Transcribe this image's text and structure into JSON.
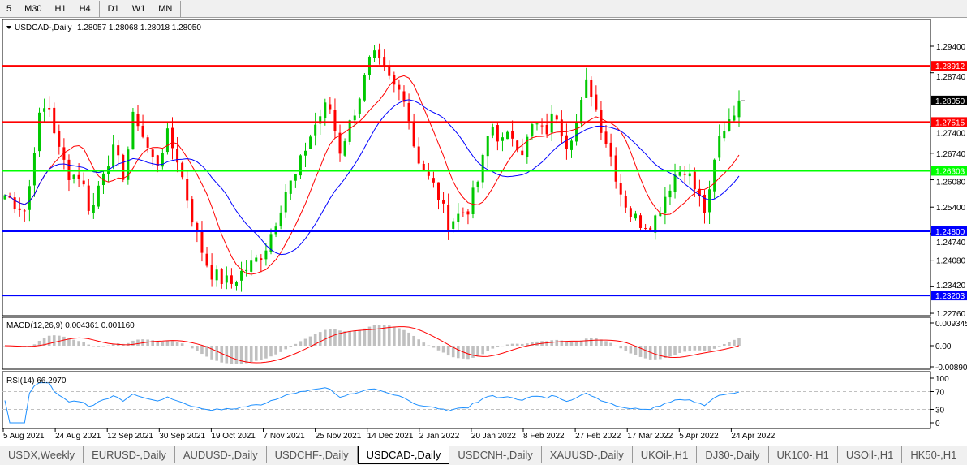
{
  "timeframes": [
    "5",
    "M30",
    "H1",
    "H4",
    "D1",
    "W1",
    "MN"
  ],
  "active_timeframe": "D1",
  "chart": {
    "title": "USDCAD-,Daily",
    "ohlc": "1.28057 1.28068 1.28018 1.28050",
    "price_ticks": [
      "1.29400",
      "1.28740",
      "1.27400",
      "1.26740",
      "1.26080",
      "1.25400",
      "1.24740",
      "1.24080",
      "1.23420",
      "1.22760"
    ],
    "current_price": "1.28050",
    "levels": [
      {
        "value": "1.28912",
        "color": "#ff0000"
      },
      {
        "value": "1.27515",
        "color": "#ff0000"
      },
      {
        "value": "1.26303",
        "color": "#00ff00"
      },
      {
        "value": "1.24800",
        "color": "#0000ff"
      },
      {
        "value": "1.23203",
        "color": "#0000ff"
      }
    ],
    "colors": {
      "bull": "#00c800",
      "bear": "#ff0000",
      "ma_fast": "#ff0000",
      "ma_slow": "#0000ff",
      "macd_hist": "#c0c0c0",
      "macd_signal": "#ff0000",
      "rsi": "#1e90ff"
    }
  },
  "macd": {
    "label": "MACD(12,26,9) 0.004361 0.001160",
    "ticks": [
      "0.009345",
      "0.00",
      "-0.008902"
    ]
  },
  "rsi": {
    "label": "RSI(14) 66.2970",
    "ticks": [
      "100",
      "70",
      "30",
      "0"
    ]
  },
  "date_labels": [
    "5 Aug 2021",
    "24 Aug 2021",
    "12 Sep 2021",
    "30 Sep 2021",
    "19 Oct 2021",
    "7 Nov 2021",
    "25 Nov 2021",
    "14 Dec 2021",
    "2 Jan 2022",
    "20 Jan 2022",
    "8 Feb 2022",
    "27 Feb 2022",
    "17 Mar 2022",
    "5 Apr 2022",
    "24 Apr 2022"
  ],
  "chart_data": {
    "type": "candlestick",
    "symbol": "USDCAD-",
    "timeframe": "Daily",
    "ylim": [
      1.2276,
      1.2978
    ],
    "x_range": [
      "5 Aug 2021",
      "28 Apr 2022"
    ],
    "approx_closes": [
      1.257,
      1.255,
      1.253,
      1.275,
      1.28,
      1.268,
      1.262,
      1.262,
      1.252,
      1.263,
      1.268,
      1.262,
      1.278,
      1.27,
      1.264,
      1.272,
      1.266,
      1.255,
      1.245,
      1.238,
      1.236,
      1.235,
      1.238,
      1.24,
      1.243,
      1.25,
      1.258,
      1.262,
      1.27,
      1.276,
      1.28,
      1.268,
      1.275,
      1.283,
      1.292,
      1.288,
      1.284,
      1.282,
      1.268,
      1.262,
      1.258,
      1.25,
      1.252,
      1.254,
      1.262,
      1.275,
      1.27,
      1.272,
      1.268,
      1.275,
      1.272,
      1.278,
      1.27,
      1.275,
      1.286,
      1.276,
      1.268,
      1.258,
      1.252,
      1.25,
      1.25,
      1.256,
      1.262,
      1.264,
      1.258,
      1.252,
      1.27,
      1.276,
      1.2805
    ]
  }
}
